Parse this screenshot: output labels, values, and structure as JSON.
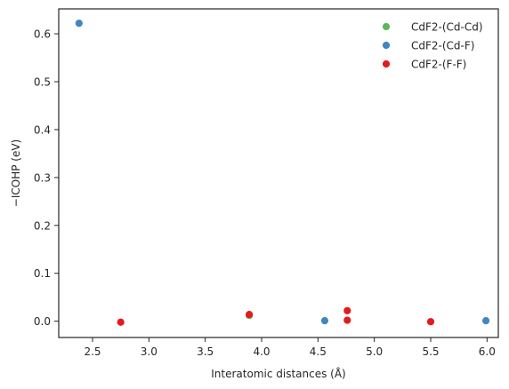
{
  "chart_data": {
    "type": "scatter",
    "xlabel": "Interatomic distances (Å)",
    "ylabel": "−ICOHP (eV)",
    "xlim": [
      2.2,
      6.1
    ],
    "ylim": [
      -0.034,
      0.652
    ],
    "xticks": [
      2.5,
      3.0,
      3.5,
      4.0,
      4.5,
      5.0,
      5.5,
      6.0
    ],
    "xtick_labels": [
      "2.5",
      "3.0",
      "3.5",
      "4.0",
      "4.5",
      "5.0",
      "5.5",
      "6.0"
    ],
    "yticks": [
      0.0,
      0.1,
      0.2,
      0.3,
      0.4,
      0.5,
      0.6
    ],
    "ytick_labels": [
      "0.0",
      "0.1",
      "0.2",
      "0.3",
      "0.4",
      "0.5",
      "0.6"
    ],
    "grid": false,
    "legend_position": "top-right",
    "series": [
      {
        "name": "CdF2-(Cd-Cd)",
        "color": "#5cb85c",
        "points": [
          [
            3.89,
            0.012
          ]
        ]
      },
      {
        "name": "CdF2-(Cd-F)",
        "color": "#3f86c2",
        "points": [
          [
            2.38,
            0.622
          ],
          [
            4.56,
            0.001
          ],
          [
            5.99,
            0.001
          ]
        ]
      },
      {
        "name": "CdF2-(F-F)",
        "color": "#e41a1c",
        "points": [
          [
            2.75,
            -0.002
          ],
          [
            3.89,
            0.014
          ],
          [
            4.76,
            0.022
          ],
          [
            4.76,
            0.002
          ],
          [
            5.5,
            -0.001
          ]
        ]
      }
    ]
  }
}
